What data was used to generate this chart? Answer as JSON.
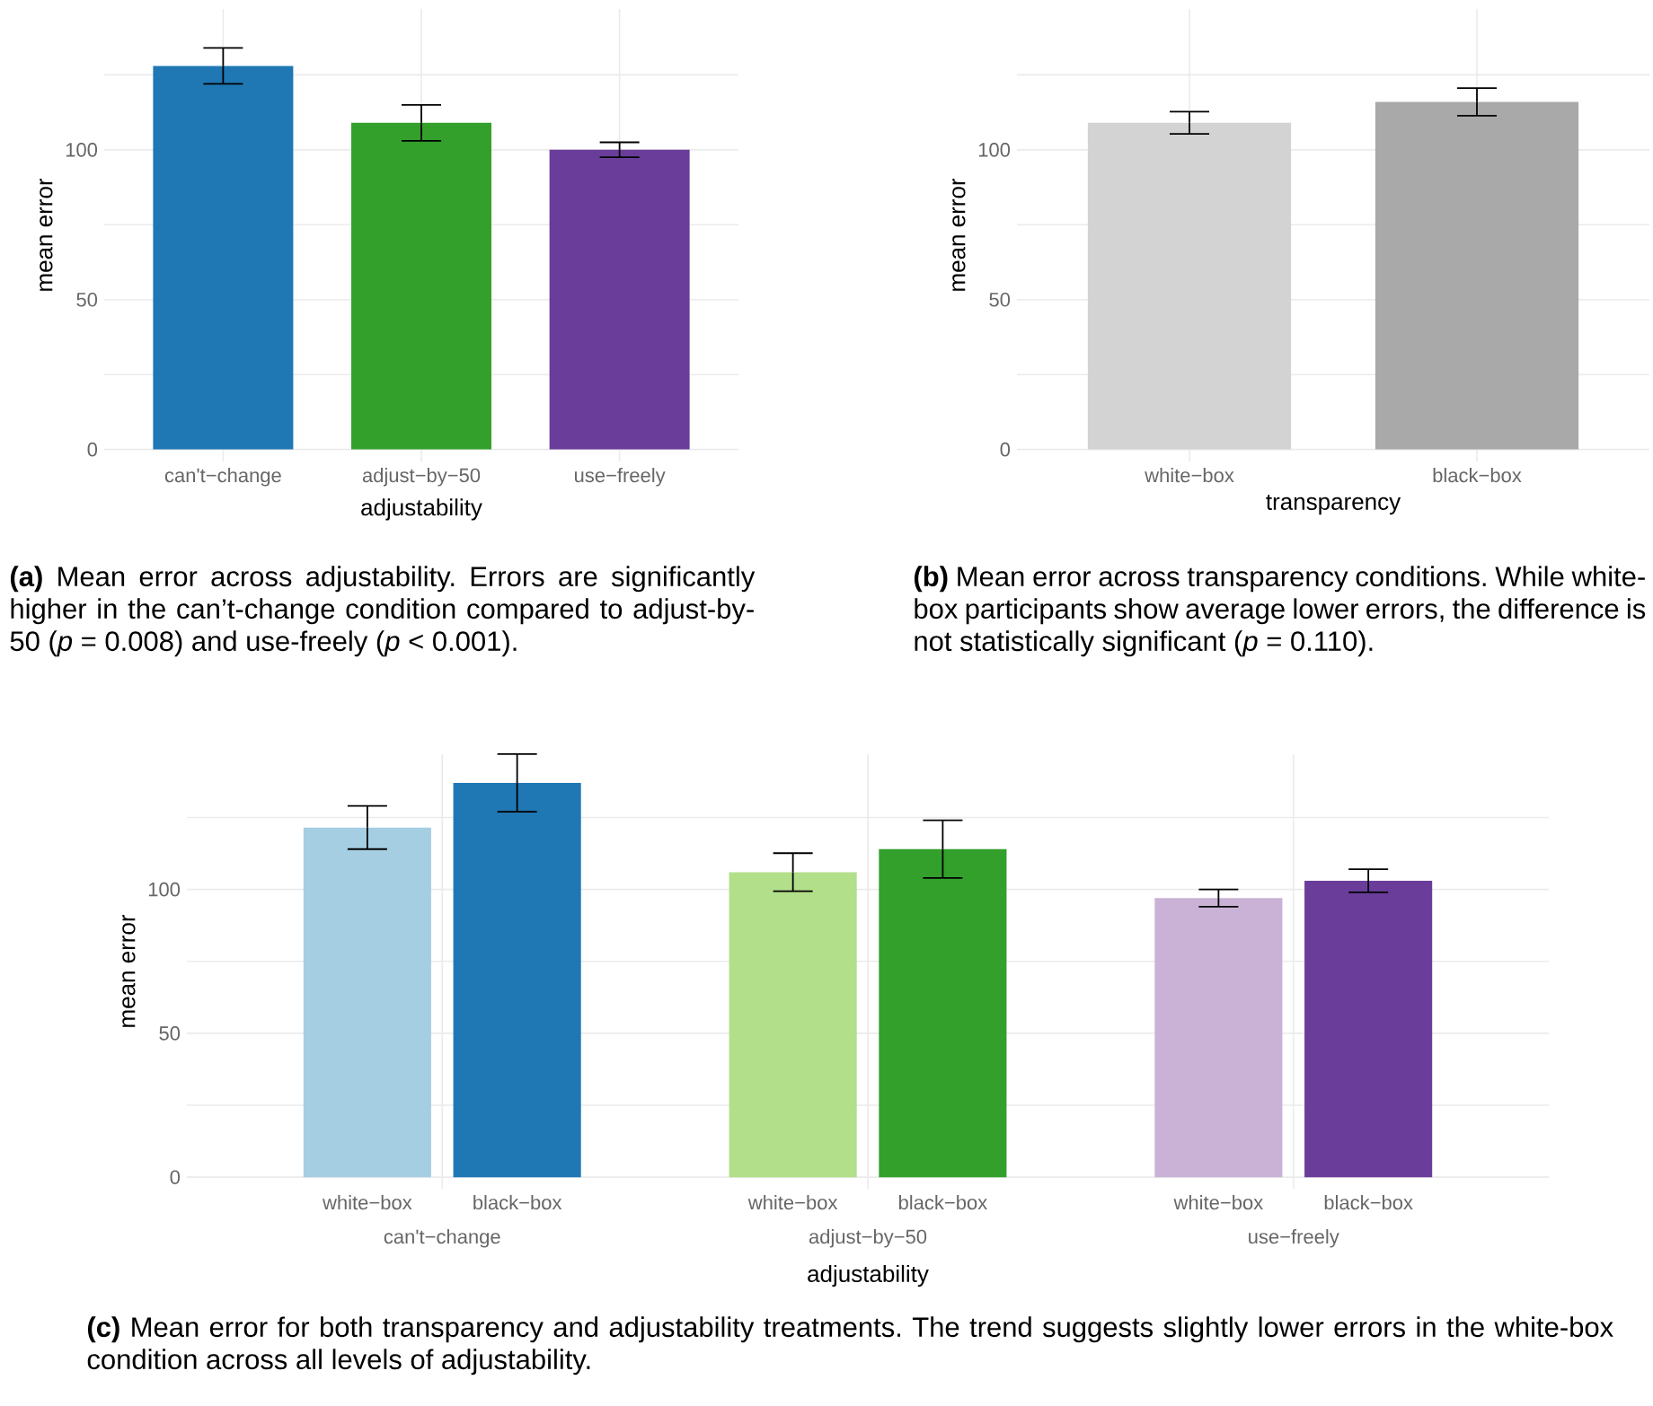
{
  "chart_data": [
    {
      "type": "bar",
      "xlabel": "adjustability",
      "ylabel": "mean error",
      "categories": [
        "can't−change",
        "adjust−by−50",
        "use−freely"
      ],
      "values": [
        128,
        109,
        100
      ],
      "errors": [
        6,
        6,
        2.5
      ],
      "colors": [
        "#1f78b4",
        "#33a02c",
        "#6a3d9a"
      ],
      "ylim": [
        -4,
        147
      ],
      "yticks": [
        0,
        {
          "value": 25,
          "label": null
        },
        50,
        {
          "value": 75,
          "label": null
        },
        100,
        {
          "value": 125,
          "label": null
        }
      ],
      "grid": true,
      "annotations": [
        "**(a)** Mean error across adjustability. Errors are significantly higher in the can’t-change condition compared to adjust-by-50 (*p* = 0.008) and use-freely (*p* < 0.001)."
      ]
    },
    {
      "type": "bar",
      "xlabel": "transparency",
      "ylabel": "mean error",
      "categories": [
        "white−box",
        "black−box"
      ],
      "values": [
        109,
        116
      ],
      "errors": [
        3.7,
        4.6
      ],
      "colors": [
        "#d3d3d3",
        "#a9a9a9"
      ],
      "ylim": [
        -4,
        147
      ],
      "yticks": [
        0,
        {
          "value": 25,
          "label": null
        },
        50,
        {
          "value": 75,
          "label": null
        },
        100,
        {
          "value": 125,
          "label": null
        }
      ],
      "grid": true,
      "annotations": [
        "**(b)** Mean error across transparency conditions. While white-box participants show average lower errors, the difference is not statistically significant (*p* = 0.110)."
      ]
    },
    {
      "type": "bar",
      "xlabel": "adjustability",
      "ylabel": "mean error",
      "categories": [
        "can't−change",
        "adjust−by−50",
        "use−freely"
      ],
      "series": [
        {
          "name": "white−box",
          "colors": [
            "#a6cee3",
            "#b2df8a",
            "#cab2d6"
          ],
          "values": [
            121.5,
            106,
            97
          ],
          "errors": [
            7.5,
            6.6,
            3
          ]
        },
        {
          "name": "black−box",
          "colors": [
            "#1f78b4",
            "#33a02c",
            "#6a3d9a"
          ],
          "values": [
            137,
            114,
            103
          ],
          "errors": [
            10,
            10,
            4
          ]
        }
      ],
      "ylim": [
        -4,
        147
      ],
      "yticks": [
        0,
        {
          "value": 25,
          "label": null
        },
        50,
        {
          "value": 75,
          "label": null
        },
        100,
        {
          "value": 125,
          "label": null
        }
      ],
      "grid": true,
      "annotations": [
        "**(c)** Mean error for both transparency and adjustability treatments. The trend suggests slightly lower errors in the white-box condition across all levels of adjustability."
      ]
    }
  ]
}
